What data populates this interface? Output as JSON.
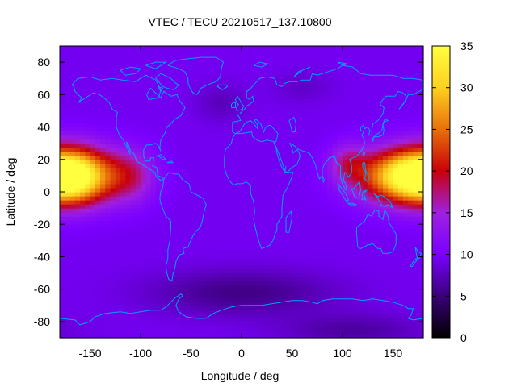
{
  "chart_data": {
    "type": "heatmap",
    "title": "VTEC / TECU 20210517_137.10800",
    "xlabel": "Longitude / deg",
    "ylabel": "Latitude / deg",
    "xlim": [
      -180,
      180
    ],
    "ylim": [
      -90,
      90
    ],
    "x_ticks": [
      -150,
      -100,
      -50,
      0,
      50,
      100,
      150
    ],
    "y_ticks": [
      -80,
      -60,
      -40,
      -20,
      0,
      20,
      40,
      60,
      80
    ],
    "colorbar": {
      "range": [
        0,
        35
      ],
      "ticks": [
        0,
        5,
        10,
        15,
        20,
        25,
        30,
        35
      ],
      "colormap": [
        "#000000",
        "#3a0078",
        "#7a00ff",
        "#a020e0",
        "#c8000a",
        "#e8700a",
        "#ffd020",
        "#ffff40"
      ]
    },
    "grid": {
      "lon_step": 5,
      "lat_step": 2.5,
      "background_level": 9.5,
      "features": [
        {
          "lon": -165,
          "lat": 10,
          "width_lon": 38,
          "width_lat": 17,
          "amplitude": 21.5
        },
        {
          "lon": -110,
          "lat": 10,
          "width_lon": 25,
          "width_lat": 16,
          "amplitude": 7
        },
        {
          "lon": 160,
          "lat": 10,
          "width_lon": 45,
          "width_lat": 16,
          "amplitude": 20.5
        },
        {
          "lon": 105,
          "lat": 18,
          "width_lon": 18,
          "width_lat": 12,
          "amplitude": 6
        },
        {
          "lon": 0,
          "lat": -62,
          "width_lon": 90,
          "width_lat": 14,
          "amplitude": -4
        },
        {
          "lon": 110,
          "lat": -85,
          "width_lon": 70,
          "width_lat": 10,
          "amplitude": -3
        },
        {
          "lon": -20,
          "lat": 55,
          "width_lon": 25,
          "width_lat": 12,
          "amplitude": -2
        },
        {
          "lon": 60,
          "lat": 65,
          "width_lon": 30,
          "width_lat": 10,
          "amplitude": -1.5
        }
      ]
    },
    "coastline_color": "#00a0ff"
  }
}
